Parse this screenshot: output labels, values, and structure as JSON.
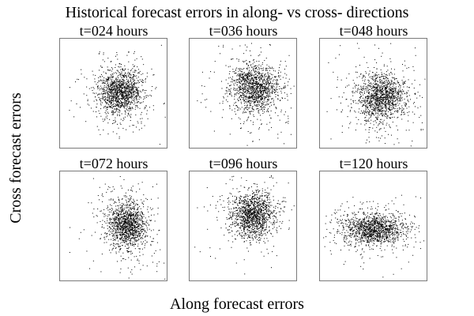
{
  "chart_data": {
    "type": "scatter",
    "title": "Historical forecast errors in along- vs cross- directions",
    "xlabel": "Along forecast errors",
    "ylabel": "Cross forecast errors",
    "grid": false,
    "point_color": "#000000",
    "panels": [
      {
        "title": "t=024 hours",
        "center": [
          0.55,
          0.48
        ],
        "spread": [
          0.1,
          0.1
        ],
        "n": 1400
      },
      {
        "title": "t=036 hours",
        "center": [
          0.6,
          0.44
        ],
        "spread": [
          0.11,
          0.11
        ],
        "n": 1400
      },
      {
        "title": "t=048 hours",
        "center": [
          0.56,
          0.53
        ],
        "spread": [
          0.11,
          0.11
        ],
        "n": 1400
      },
      {
        "title": "t=072 hours",
        "center": [
          0.62,
          0.48
        ],
        "spread": [
          0.09,
          0.11
        ],
        "n": 1400
      },
      {
        "title": "t=096 hours",
        "center": [
          0.58,
          0.39
        ],
        "spread": [
          0.1,
          0.1
        ],
        "n": 1400
      },
      {
        "title": "t=120 hours",
        "center": [
          0.5,
          0.52
        ],
        "spread": [
          0.14,
          0.07
        ],
        "n": 1400
      }
    ]
  }
}
